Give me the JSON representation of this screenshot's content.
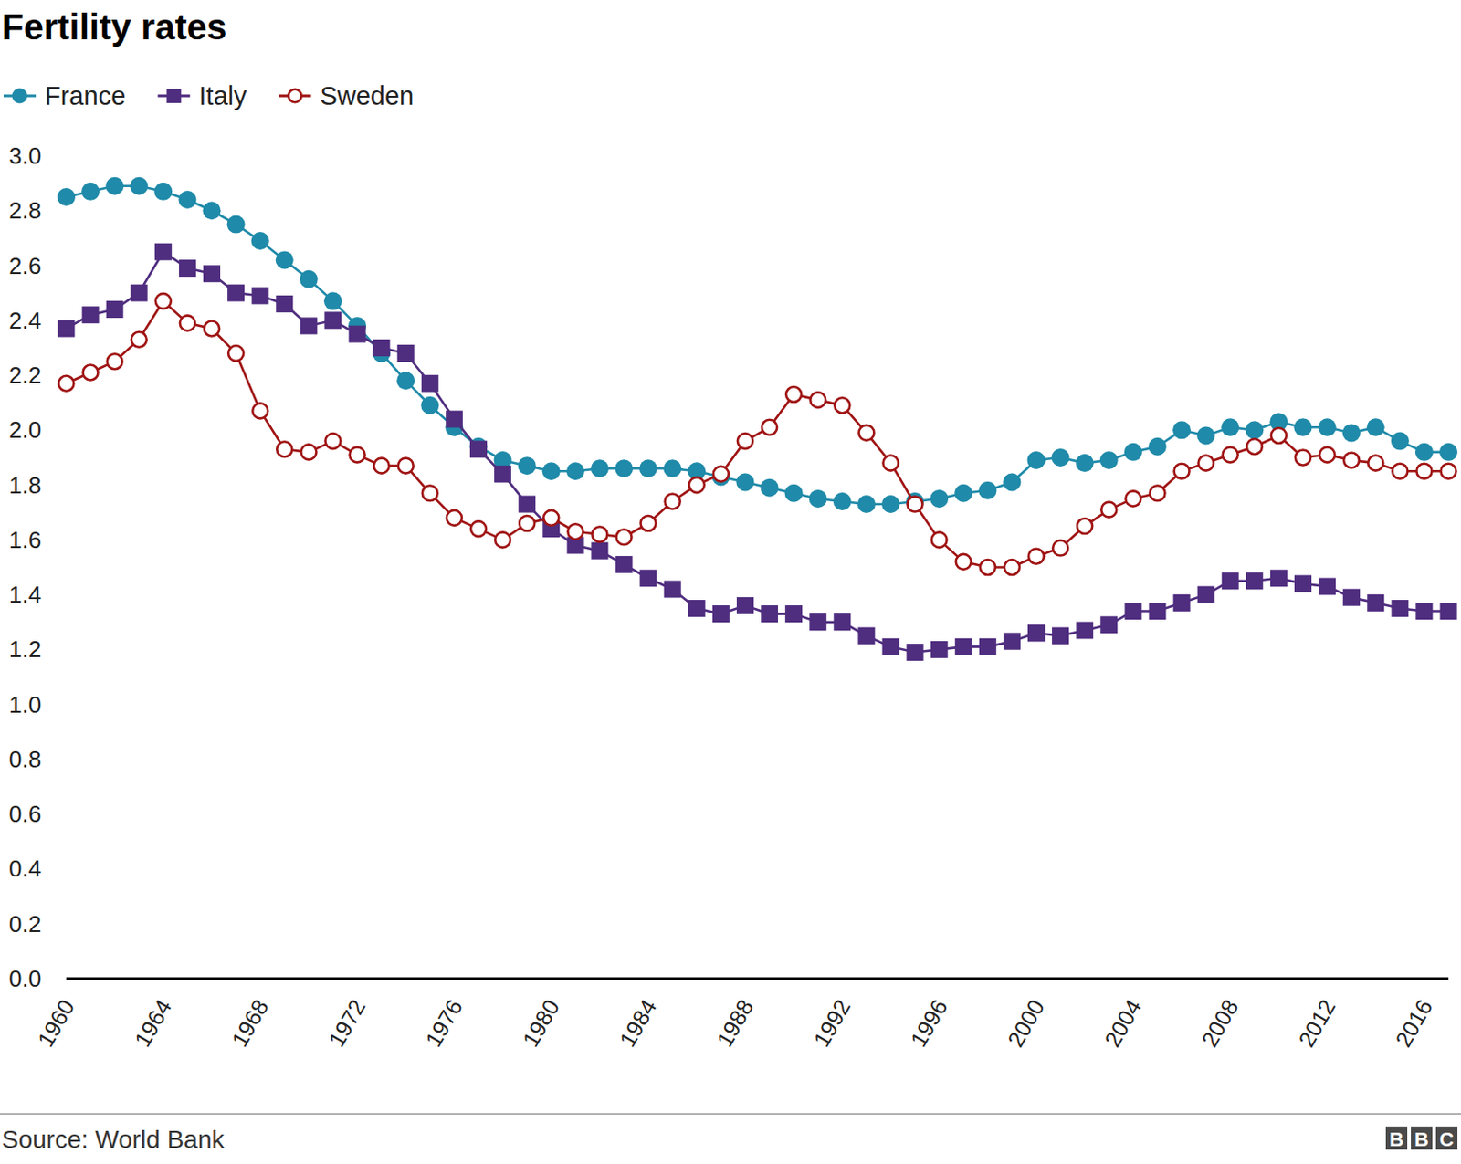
{
  "chart_data": {
    "type": "line",
    "title": "Fertility rates",
    "source": "Source: World Bank",
    "logo": "BBC",
    "x": [
      1960,
      1961,
      1962,
      1963,
      1964,
      1965,
      1966,
      1967,
      1968,
      1969,
      1970,
      1971,
      1972,
      1973,
      1974,
      1975,
      1976,
      1977,
      1978,
      1979,
      1980,
      1981,
      1982,
      1983,
      1984,
      1985,
      1986,
      1987,
      1988,
      1989,
      1990,
      1991,
      1992,
      1993,
      1994,
      1995,
      1996,
      1997,
      1998,
      1999,
      2000,
      2001,
      2002,
      2003,
      2004,
      2005,
      2006,
      2007,
      2008,
      2009,
      2010,
      2011,
      2012,
      2013,
      2014,
      2015,
      2016,
      2017
    ],
    "series": [
      {
        "name": "France",
        "color": "#1f8aa9",
        "marker": "circle",
        "values": [
          2.85,
          2.87,
          2.89,
          2.89,
          2.87,
          2.84,
          2.8,
          2.75,
          2.69,
          2.62,
          2.55,
          2.47,
          2.38,
          2.28,
          2.18,
          2.09,
          2.01,
          1.94,
          1.89,
          1.87,
          1.85,
          1.85,
          1.86,
          1.86,
          1.86,
          1.86,
          1.85,
          1.83,
          1.81,
          1.79,
          1.77,
          1.75,
          1.74,
          1.73,
          1.73,
          1.74,
          1.75,
          1.77,
          1.78,
          1.81,
          1.89,
          1.9,
          1.88,
          1.89,
          1.92,
          1.94,
          2.0,
          1.98,
          2.01,
          2.0,
          2.03,
          2.01,
          2.01,
          1.99,
          2.01,
          1.96,
          1.92,
          1.92
        ]
      },
      {
        "name": "Italy",
        "color": "#4f2d7f",
        "marker": "square",
        "values": [
          2.37,
          2.42,
          2.44,
          2.5,
          2.65,
          2.59,
          2.57,
          2.5,
          2.49,
          2.46,
          2.38,
          2.4,
          2.35,
          2.3,
          2.28,
          2.17,
          2.04,
          1.93,
          1.84,
          1.73,
          1.64,
          1.58,
          1.56,
          1.51,
          1.46,
          1.42,
          1.35,
          1.33,
          1.36,
          1.33,
          1.33,
          1.3,
          1.3,
          1.25,
          1.21,
          1.19,
          1.2,
          1.21,
          1.21,
          1.23,
          1.26,
          1.25,
          1.27,
          1.29,
          1.34,
          1.34,
          1.37,
          1.4,
          1.45,
          1.45,
          1.46,
          1.44,
          1.43,
          1.39,
          1.37,
          1.35,
          1.34,
          1.34
        ]
      },
      {
        "name": "Sweden",
        "color": "#a01414",
        "marker": "open-circle",
        "values": [
          2.17,
          2.21,
          2.25,
          2.33,
          2.47,
          2.39,
          2.37,
          2.28,
          2.07,
          1.93,
          1.92,
          1.96,
          1.91,
          1.87,
          1.87,
          1.77,
          1.68,
          1.64,
          1.6,
          1.66,
          1.68,
          1.63,
          1.62,
          1.61,
          1.66,
          1.74,
          1.8,
          1.84,
          1.96,
          2.01,
          2.13,
          2.11,
          2.09,
          1.99,
          1.88,
          1.73,
          1.6,
          1.52,
          1.5,
          1.5,
          1.54,
          1.57,
          1.65,
          1.71,
          1.75,
          1.77,
          1.85,
          1.88,
          1.91,
          1.94,
          1.98,
          1.9,
          1.91,
          1.89,
          1.88,
          1.85,
          1.85,
          1.85
        ]
      }
    ],
    "xlim": [
      1960,
      2017
    ],
    "xticks": [
      1960,
      1964,
      1968,
      1972,
      1976,
      1980,
      1984,
      1988,
      1992,
      1996,
      2000,
      2004,
      2008,
      2012,
      2016
    ],
    "ylim": [
      0,
      3
    ],
    "yticks": [
      {
        "value": 0,
        "label": "0.0"
      },
      0.2,
      0.4,
      0.6,
      0.8,
      {
        "value": 1,
        "label": "1.0"
      },
      1.2,
      1.4,
      1.6,
      1.8,
      {
        "value": 2,
        "label": "2.0"
      },
      2.2,
      2.4,
      2.6,
      2.8,
      {
        "value": 3,
        "label": "3.0"
      }
    ],
    "grid": false,
    "legend": "top-left"
  }
}
